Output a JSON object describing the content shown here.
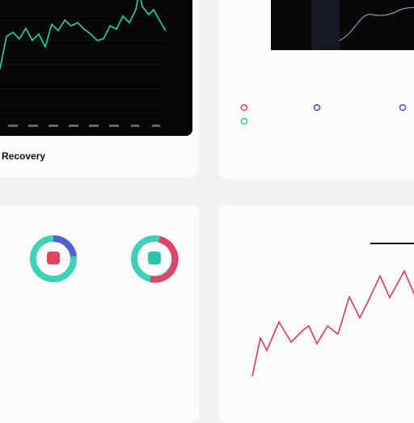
{
  "cards": [
    {
      "title": "Recovery"
    }
  ]
}
